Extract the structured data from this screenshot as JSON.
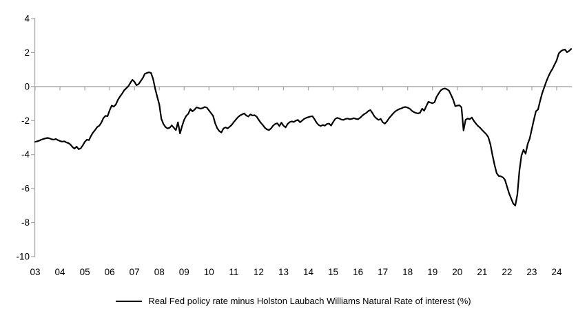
{
  "chart_data": {
    "type": "line",
    "series_name": "Real Fed policy rate minus Holston Laubach Williams Natural Rate of interest (%)",
    "start_month": "2003-01",
    "end_month": "2024-08",
    "frequency": "monthly",
    "x_tick_labels": [
      "03",
      "04",
      "05",
      "06",
      "07",
      "08",
      "09",
      "10",
      "11",
      "12",
      "13",
      "14",
      "15",
      "16",
      "17",
      "18",
      "19",
      "20",
      "21",
      "22",
      "23",
      "24"
    ],
    "y_tick_labels": [
      "4",
      "2",
      "0",
      "-2",
      "-4",
      "-6",
      "-8",
      "-10"
    ],
    "y_ticks": [
      4,
      2,
      0,
      -2,
      -4,
      -6,
      -8,
      -10
    ],
    "ylim": [
      -10,
      4
    ],
    "grid": "zero-line-only",
    "legend_position": "bottom",
    "line_color": "#000000",
    "axis_color": "#A6A6A6",
    "text_color": "#000000",
    "monthly_values": [
      -3.25,
      -3.22,
      -3.18,
      -3.12,
      -3.08,
      -3.05,
      -3.02,
      -3.05,
      -3.1,
      -3.12,
      -3.08,
      -3.15,
      -3.2,
      -3.24,
      -3.22,
      -3.28,
      -3.32,
      -3.4,
      -3.55,
      -3.65,
      -3.53,
      -3.68,
      -3.64,
      -3.46,
      -3.25,
      -3.12,
      -3.15,
      -2.9,
      -2.7,
      -2.55,
      -2.38,
      -2.3,
      -2.12,
      -1.85,
      -1.72,
      -1.74,
      -1.4,
      -1.12,
      -1.18,
      -1.05,
      -0.78,
      -0.58,
      -0.42,
      -0.22,
      -0.1,
      0.02,
      0.22,
      0.4,
      0.28,
      0.08,
      0.15,
      0.32,
      0.5,
      0.75,
      0.8,
      0.84,
      0.8,
      0.45,
      -0.12,
      -0.6,
      -1.05,
      -1.9,
      -2.2,
      -2.38,
      -2.46,
      -2.42,
      -2.28,
      -2.42,
      -2.56,
      -2.1,
      -2.76,
      -2.32,
      -1.95,
      -1.72,
      -1.6,
      -1.32,
      -1.46,
      -1.36,
      -1.22,
      -1.26,
      -1.3,
      -1.26,
      -1.2,
      -1.24,
      -1.4,
      -1.56,
      -1.72,
      -2.16,
      -2.45,
      -2.62,
      -2.7,
      -2.46,
      -2.4,
      -2.46,
      -2.36,
      -2.25,
      -2.08,
      -1.94,
      -1.8,
      -1.7,
      -1.64,
      -1.58,
      -1.7,
      -1.76,
      -1.64,
      -1.7,
      -1.68,
      -1.76,
      -1.95,
      -2.12,
      -2.26,
      -2.42,
      -2.52,
      -2.56,
      -2.46,
      -2.3,
      -2.2,
      -2.16,
      -2.32,
      -2.12,
      -2.3,
      -2.4,
      -2.2,
      -2.09,
      -2.05,
      -2.08,
      -2.0,
      -1.96,
      -2.1,
      -2.0,
      -1.9,
      -1.84,
      -1.8,
      -1.76,
      -1.74,
      -1.92,
      -2.12,
      -2.26,
      -2.32,
      -2.26,
      -2.3,
      -2.2,
      -2.18,
      -2.29,
      -2.08,
      -1.9,
      -1.84,
      -1.88,
      -1.94,
      -1.96,
      -1.9,
      -1.88,
      -1.92,
      -1.9,
      -1.86,
      -1.9,
      -1.92,
      -1.84,
      -1.72,
      -1.62,
      -1.55,
      -1.44,
      -1.38,
      -1.56,
      -1.76,
      -1.88,
      -1.96,
      -1.9,
      -2.1,
      -2.18,
      -2.04,
      -1.86,
      -1.72,
      -1.58,
      -1.46,
      -1.38,
      -1.32,
      -1.28,
      -1.22,
      -1.2,
      -1.24,
      -1.3,
      -1.42,
      -1.5,
      -1.55,
      -1.58,
      -1.54,
      -1.3,
      -1.42,
      -1.15,
      -0.9,
      -0.94,
      -0.98,
      -0.92,
      -0.6,
      -0.4,
      -0.22,
      -0.14,
      -0.11,
      -0.16,
      -0.25,
      -0.5,
      -0.78,
      -1.15,
      -1.12,
      -1.1,
      -1.22,
      -2.58,
      -1.95,
      -1.88,
      -1.92,
      -1.82,
      -2.02,
      -2.18,
      -2.32,
      -2.42,
      -2.56,
      -2.68,
      -2.8,
      -2.98,
      -3.4,
      -4.05,
      -4.62,
      -5.1,
      -5.26,
      -5.28,
      -5.34,
      -5.48,
      -5.88,
      -6.28,
      -6.58,
      -6.88,
      -7.0,
      -6.35,
      -4.95,
      -4.05,
      -3.72,
      -3.95,
      -3.38,
      -3.05,
      -2.5,
      -1.95,
      -1.45,
      -1.35,
      -0.85,
      -0.4,
      -0.05,
      0.3,
      0.6,
      0.85,
      1.05,
      1.3,
      1.55,
      1.95,
      2.08,
      2.15,
      2.18,
      2.02,
      2.1,
      2.21
    ]
  },
  "legend": {
    "label": "Real Fed policy rate minus Holston Laubach Williams Natural Rate of interest (%)"
  }
}
